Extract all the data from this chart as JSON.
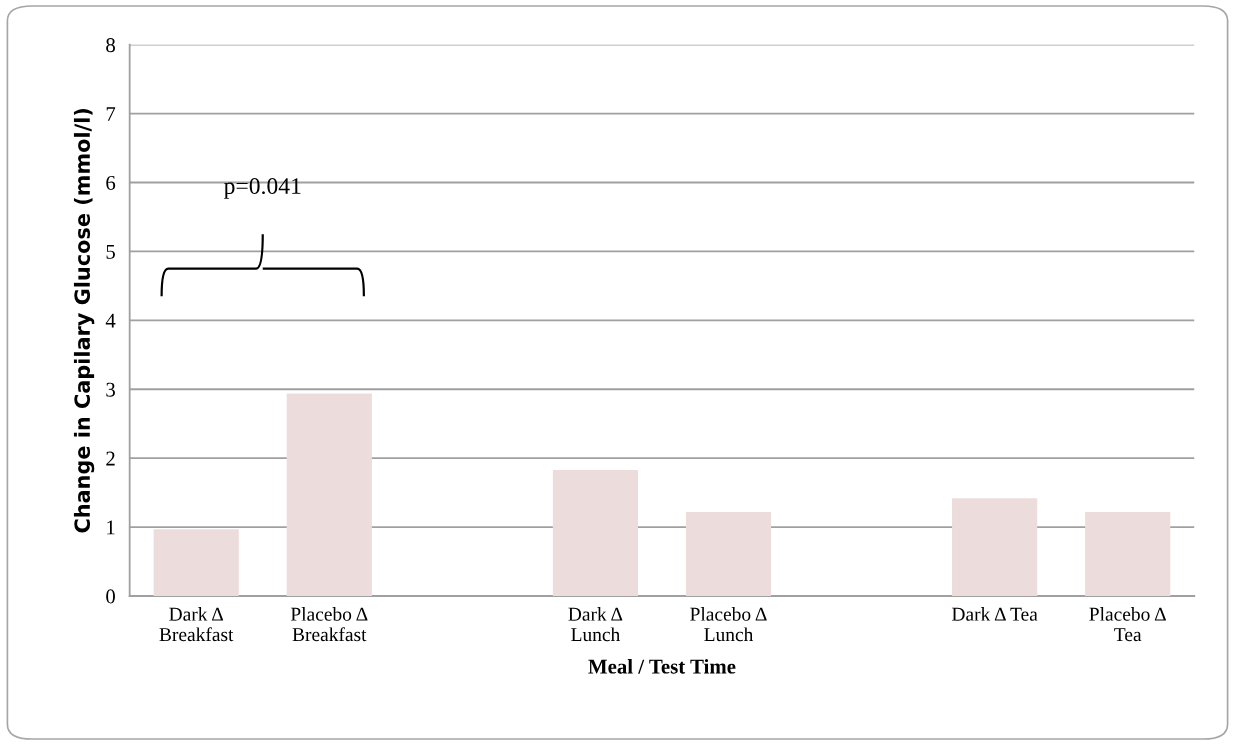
{
  "chart_data": {
    "type": "bar",
    "xlabel": "Meal / Test Time",
    "ylabel": "Change in Capilary Glucose (mmol/l)",
    "categories": [
      "Dark Δ\nBreakfast",
      "Placebo Δ\nBreakfast",
      null,
      "Dark Δ\nLunch",
      "Placebo Δ\nLunch",
      null,
      "Dark Δ Tea",
      "Placebo Δ\nTea"
    ],
    "values": [
      0.97,
      2.94,
      null,
      1.83,
      1.22,
      null,
      1.42,
      1.22
    ],
    "color": "#eddcdc",
    "ylim": [
      0,
      8
    ],
    "yticks": [
      0,
      1,
      2,
      3,
      4,
      5,
      6,
      7,
      8
    ],
    "grid": "y",
    "legend": false,
    "annotations": [
      "p=0.041"
    ]
  }
}
